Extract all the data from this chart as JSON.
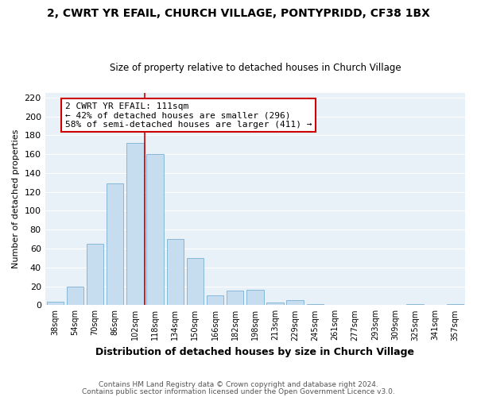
{
  "title": "2, CWRT YR EFAIL, CHURCH VILLAGE, PONTYPRIDD, CF38 1BX",
  "subtitle": "Size of property relative to detached houses in Church Village",
  "xlabel": "Distribution of detached houses by size in Church Village",
  "ylabel": "Number of detached properties",
  "bar_color": "#c6ddf0",
  "bar_edge_color": "#7ab0d4",
  "categories": [
    "38sqm",
    "54sqm",
    "70sqm",
    "86sqm",
    "102sqm",
    "118sqm",
    "134sqm",
    "150sqm",
    "166sqm",
    "182sqm",
    "198sqm",
    "213sqm",
    "229sqm",
    "245sqm",
    "261sqm",
    "277sqm",
    "293sqm",
    "309sqm",
    "325sqm",
    "341sqm",
    "357sqm"
  ],
  "values": [
    4,
    20,
    65,
    129,
    172,
    160,
    70,
    50,
    10,
    15,
    16,
    3,
    5,
    1,
    0,
    0,
    0,
    0,
    1,
    0,
    1
  ],
  "vline_color": "#cc0000",
  "annotation_title": "2 CWRT YR EFAIL: 111sqm",
  "annotation_line1": "← 42% of detached houses are smaller (296)",
  "annotation_line2": "58% of semi-detached houses are larger (411) →",
  "annotation_box_color": "#ffffff",
  "annotation_box_edge": "#cc0000",
  "ylim": [
    0,
    225
  ],
  "yticks": [
    0,
    20,
    40,
    60,
    80,
    100,
    120,
    140,
    160,
    180,
    200,
    220
  ],
  "footnote1": "Contains HM Land Registry data © Crown copyright and database right 2024.",
  "footnote2": "Contains public sector information licensed under the Open Government Licence v3.0.",
  "fig_bg_color": "#ffffff",
  "plot_bg_color": "#e8f0f8",
  "grid_color": "#ffffff",
  "title_color": "#000000",
  "subtitle_color": "#000000"
}
